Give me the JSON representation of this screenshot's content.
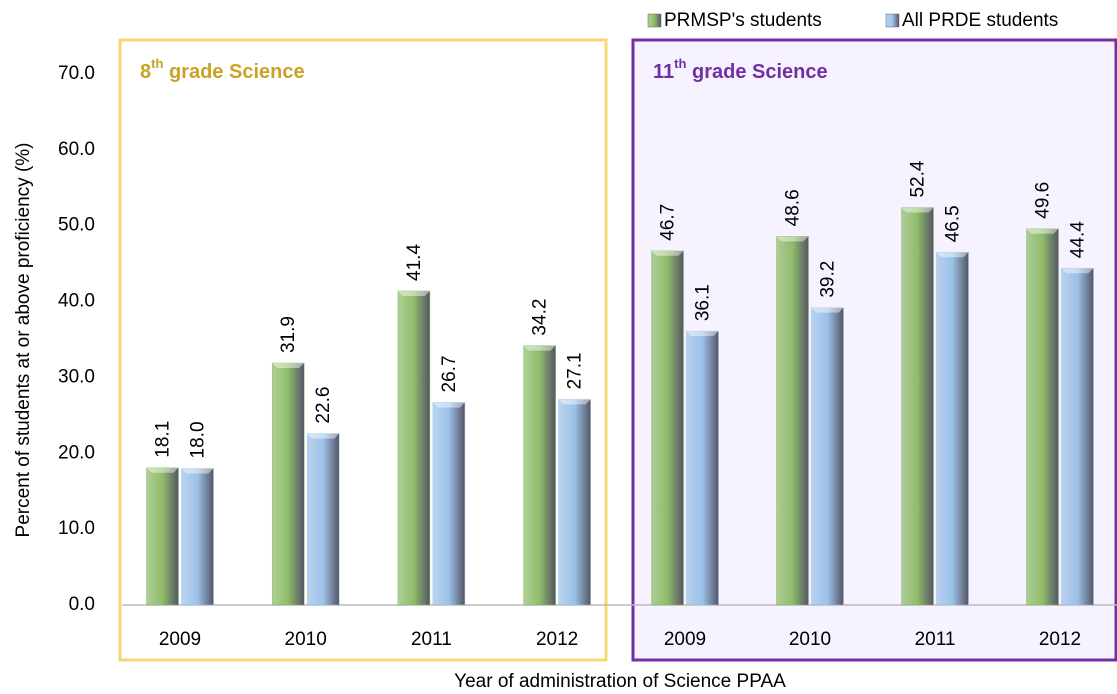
{
  "chart_data": {
    "type": "bar",
    "x_label": "Year of administration of Science PPAA",
    "y_label": "Percent of students at or above proficiency (%)",
    "panels": [
      {
        "number": "8",
        "sup": "th",
        "text": " grade Science",
        "color": "#c9a227",
        "border": "#f7d774",
        "background": "#ffffff"
      },
      {
        "number": "11",
        "sup": "th",
        "text": " grade Science",
        "color": "#7030a0",
        "border": "#7030a0",
        "background": "#f7f2ff"
      }
    ],
    "categories": [
      "2009",
      "2010",
      "2011",
      "2012",
      "2009",
      "2010",
      "2011",
      "2012"
    ],
    "series": [
      {
        "name": "PRMSP's students",
        "color": "#8fbc6a",
        "values": [
          18.1,
          31.9,
          41.4,
          34.2,
          46.7,
          48.6,
          52.4,
          49.6
        ],
        "value_labels": [
          "18.1",
          "31.9",
          "41.4",
          "34.2",
          "46.7",
          "48.6",
          "52.4",
          "49.6"
        ]
      },
      {
        "name": "All PRDE students",
        "color": "#9cc2e8",
        "values": [
          18.0,
          22.6,
          26.7,
          27.1,
          36.1,
          39.2,
          46.5,
          44.4
        ],
        "value_labels": [
          "18.0",
          "22.6",
          "26.7",
          "27.1",
          "36.1",
          "39.2",
          "46.5",
          "44.4"
        ]
      }
    ],
    "ylim": [
      0,
      70
    ],
    "yticks": [
      {
        "value": 0,
        "label": "0.0"
      },
      {
        "value": 10,
        "label": "10.0"
      },
      {
        "value": 20,
        "label": "20.0"
      },
      {
        "value": 30,
        "label": "30.0"
      },
      {
        "value": 40,
        "label": "40.0"
      },
      {
        "value": 50,
        "label": "50.0"
      },
      {
        "value": 60,
        "label": "60.0"
      },
      {
        "value": 70,
        "label": "70.0"
      }
    ],
    "legend": "top-right"
  }
}
